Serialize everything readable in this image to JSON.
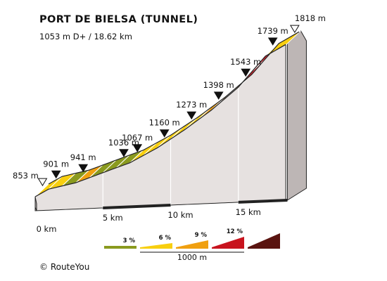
{
  "header": {
    "title": "PORT DE BIELSA (TUNNEL)",
    "subtitle": "1053 m D+ / 18.62 km"
  },
  "footer": {
    "credit": "© RouteYou"
  },
  "colors": {
    "gradient_3": "#8a9a1e",
    "gradient_6": "#f8cf0f",
    "gradient_9": "#f0a010",
    "gradient_12": "#c8141e",
    "gradient_max": "#5a1410",
    "side_face": "#e6e1e0",
    "outline": "#222222"
  },
  "legend": {
    "items": [
      {
        "label": "3 %",
        "color": "#8a9a1e"
      },
      {
        "label": "6 %",
        "color": "#f8cf0f"
      },
      {
        "label": "9 %",
        "color": "#f0a010"
      },
      {
        "label": "12 %",
        "color": "#c8141e"
      },
      {
        "label": "",
        "color": "#5a1410"
      }
    ],
    "scale_label": "1000 m"
  },
  "chart_data": {
    "type": "area",
    "title": "PORT DE BIELSA (TUNNEL)",
    "subtitle": "1053 m D+ / 18.62 km",
    "x_unit": "km",
    "y_unit": "m",
    "distance_total_km": 18.62,
    "x_ticks": [
      {
        "value": 0,
        "label": "0 km"
      },
      {
        "value": 5,
        "label": "5 km"
      },
      {
        "value": 10,
        "label": "10 km"
      },
      {
        "value": 15,
        "label": "15 km"
      }
    ],
    "markers": [
      {
        "km": 0,
        "elevation": 853,
        "label": "853 m",
        "kind": "start"
      },
      {
        "km": 1,
        "elevation": 901,
        "label": "901 m",
        "kind": "point"
      },
      {
        "km": 3,
        "elevation": 941,
        "label": "941 m",
        "kind": "point"
      },
      {
        "km": 6,
        "elevation": 1036,
        "label": "1036 m",
        "kind": "point"
      },
      {
        "km": 7,
        "elevation": 1067,
        "label": "1067 m",
        "kind": "point"
      },
      {
        "km": 9,
        "elevation": 1160,
        "label": "1160 m",
        "kind": "point"
      },
      {
        "km": 11,
        "elevation": 1273,
        "label": "1273 m",
        "kind": "point"
      },
      {
        "km": 13,
        "elevation": 1398,
        "label": "1398 m",
        "kind": "point"
      },
      {
        "km": 15,
        "elevation": 1543,
        "label": "1543 m",
        "kind": "point"
      },
      {
        "km": 17,
        "elevation": 1739,
        "label": "1739 m",
        "kind": "point"
      },
      {
        "km": 18.62,
        "elevation": 1818,
        "label": "1818 m",
        "kind": "summit"
      }
    ],
    "segments": [
      {
        "from_km": 0,
        "to_km": 1,
        "gradient_class": 6
      },
      {
        "from_km": 1,
        "to_km": 2,
        "gradient_class": 6
      },
      {
        "from_km": 2,
        "to_km": 3,
        "gradient_class": 3
      },
      {
        "from_km": 3,
        "to_km": 4,
        "gradient_class": 9
      },
      {
        "from_km": 4,
        "to_km": 5,
        "gradient_class": 3
      },
      {
        "from_km": 5,
        "to_km": 6,
        "gradient_class": 3
      },
      {
        "from_km": 6,
        "to_km": 7,
        "gradient_class": 3
      },
      {
        "from_km": 7,
        "to_km": 8,
        "gradient_class": 6
      },
      {
        "from_km": 8,
        "to_km": 9,
        "gradient_class": 6
      },
      {
        "from_km": 9,
        "to_km": 10,
        "gradient_class": 6
      },
      {
        "from_km": 10,
        "to_km": 11,
        "gradient_class": 6
      },
      {
        "from_km": 11,
        "to_km": 12,
        "gradient_class": 6
      },
      {
        "from_km": 12,
        "to_km": 13,
        "gradient_class": 9
      },
      {
        "from_km": 13,
        "to_km": 14,
        "gradient_class": 9
      },
      {
        "from_km": 14,
        "to_km": 15,
        "gradient_class": 9
      },
      {
        "from_km": 15,
        "to_km": 16,
        "gradient_class": 12
      },
      {
        "from_km": 16,
        "to_km": 17,
        "gradient_class": 12
      },
      {
        "from_km": 17,
        "to_km": 18.62,
        "gradient_class": 6
      }
    ]
  }
}
